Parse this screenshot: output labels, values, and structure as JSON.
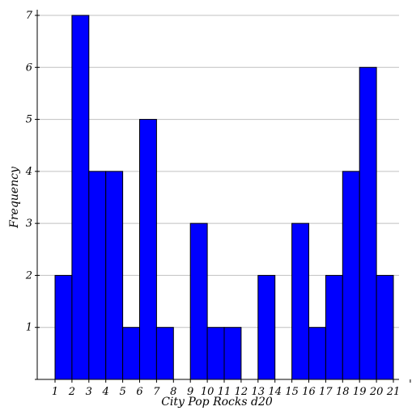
{
  "chart_data": {
    "type": "bar",
    "xlabel": "City Pop Rocks d20",
    "ylabel": "Frequency",
    "categories": [
      "1",
      "2",
      "3",
      "4",
      "5",
      "6",
      "7",
      "8",
      "9",
      "10",
      "11",
      "12",
      "13",
      "14",
      "15",
      "16",
      "17",
      "18",
      "19",
      "20",
      "21"
    ],
    "values": [
      2,
      7,
      4,
      4,
      1,
      5,
      1,
      0,
      3,
      1,
      1,
      0,
      2,
      0,
      3,
      1,
      2,
      4,
      6,
      2,
      0
    ],
    "ylim": [
      0,
      7
    ],
    "yticks": [
      1,
      2,
      3,
      4,
      5,
      6,
      7
    ],
    "grid": true,
    "colors": {
      "bar_fill": "#0000ff",
      "bar_stroke": "#000000",
      "grid": "#c0c0c0",
      "axis": "#000000"
    }
  }
}
